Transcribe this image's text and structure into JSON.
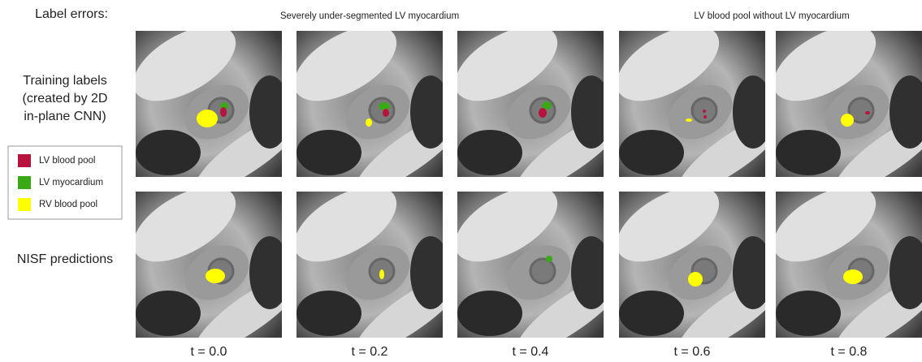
{
  "header": {
    "label": "Label errors:"
  },
  "groups": [
    "Severely under-segmented LV myocardium",
    "LV blood pool without LV myocardium"
  ],
  "rows": [
    {
      "lines": [
        "Training labels",
        "(created by 2D",
        "in-plane CNN)"
      ]
    },
    {
      "lines": [
        "NISF predictions"
      ]
    }
  ],
  "legend": [
    {
      "label": "LV blood pool",
      "color": "#b8123e"
    },
    {
      "label": "LV myocardium",
      "color": "#3aa817"
    },
    {
      "label": "RV blood pool",
      "color": "#ffff00"
    }
  ],
  "time_labels": [
    "t = 0.0",
    "t = 0.2",
    "t = 0.4",
    "t = 0.6",
    "t = 0.8"
  ]
}
